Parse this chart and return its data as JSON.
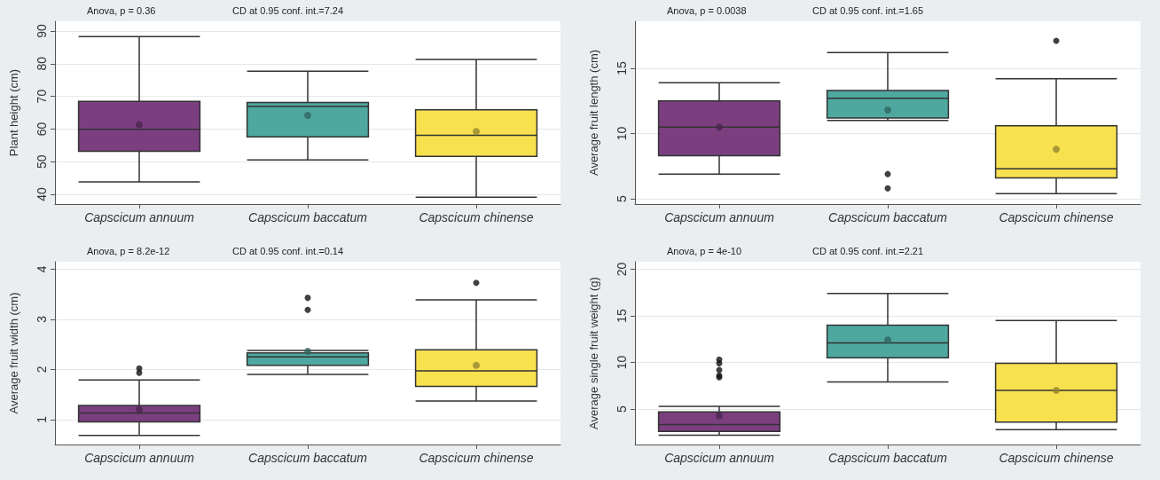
{
  "chart_data": [
    {
      "type": "box",
      "ylabel": "Plant height (cm)",
      "categories": [
        "Capscicum annuum",
        "Capscicum baccatum",
        "Capscicum chinense"
      ],
      "colors": [
        "#7b3f80",
        "#4fa8a0",
        "#f7e14f"
      ],
      "ylim": [
        37,
        93
      ],
      "yticks": [
        40,
        50,
        60,
        70,
        80,
        90
      ],
      "grid": "y",
      "annotations": [
        "Anova, p = 0.36",
        "CD at 0.95 conf. int.=7.24"
      ],
      "boxes": [
        {
          "low": 43.8,
          "q1": 53.2,
          "median": 59.9,
          "q3": 68.5,
          "high": 88.3,
          "mean": 61.3
        },
        {
          "low": 50.5,
          "q1": 57.6,
          "median": 66.9,
          "q3": 68.1,
          "high": 77.7,
          "mean": 64.2
        },
        {
          "low": 39.1,
          "q1": 51.6,
          "median": 58.1,
          "q3": 65.9,
          "high": 81.3,
          "mean": 59.2
        }
      ]
    },
    {
      "type": "box",
      "ylabel": "Average fruit length (cm)",
      "categories": [
        "Capscicum annuum",
        "Capscicum baccatum",
        "Capscicum chinense"
      ],
      "colors": [
        "#7b3f80",
        "#4fa8a0",
        "#f7e14f"
      ],
      "ylim": [
        4.6,
        18.6
      ],
      "yticks": [
        5,
        10,
        15
      ],
      "grid": "y",
      "annotations": [
        "Anova, p = 0.0038",
        "CD at 0.95 conf. int.=1.65"
      ],
      "boxes": [
        {
          "low": 6.9,
          "q1": 8.3,
          "median": 10.5,
          "q3": 12.5,
          "high": 13.9,
          "mean": 10.5
        },
        {
          "low": 11.0,
          "q1": 11.2,
          "median": 12.7,
          "q3": 13.3,
          "high": 16.2,
          "mean": 11.8,
          "outliers": [
            6.9,
            5.8
          ]
        },
        {
          "low": 5.4,
          "q1": 6.6,
          "median": 7.3,
          "q3": 10.6,
          "high": 14.2,
          "mean": 8.8,
          "outliers": [
            17.1
          ]
        }
      ]
    },
    {
      "type": "box",
      "ylabel": "Average fruit width (cm)",
      "categories": [
        "Capscicum annuum",
        "Capscicum baccatum",
        "Capscicum chinense"
      ],
      "colors": [
        "#7b3f80",
        "#4fa8a0",
        "#f7e14f"
      ],
      "ylim": [
        0.5,
        4.15
      ],
      "yticks": [
        1,
        2,
        3,
        4
      ],
      "grid": "y",
      "annotations": [
        "Anova, p = 8.2e-12",
        "CD at 0.95 conf. int.=0.14"
      ],
      "boxes": [
        {
          "low": 0.68,
          "q1": 0.95,
          "median": 1.13,
          "q3": 1.28,
          "high": 1.79,
          "mean": 1.2,
          "outliers": [
            2.02,
            1.93
          ]
        },
        {
          "low": 1.9,
          "q1": 2.08,
          "median": 2.25,
          "q3": 2.33,
          "high": 2.38,
          "mean": 2.36,
          "outliers": [
            3.43,
            3.19
          ]
        },
        {
          "low": 1.37,
          "q1": 1.66,
          "median": 1.97,
          "q3": 2.39,
          "high": 3.39,
          "mean": 2.08,
          "outliers": [
            3.73
          ]
        }
      ]
    },
    {
      "type": "box",
      "ylabel": "Average single fruit weight (g)",
      "categories": [
        "Capscicum annuum",
        "Capscicum baccatum",
        "Capscicum chinense"
      ],
      "colors": [
        "#7b3f80",
        "#4fa8a0",
        "#f7e14f"
      ],
      "ylim": [
        1.2,
        20.8
      ],
      "yticks": [
        5,
        10,
        15,
        20
      ],
      "grid": "y",
      "annotations": [
        "Anova, p = 4e-10",
        "CD at 0.95 conf. int.=2.21"
      ],
      "boxes": [
        {
          "low": 2.2,
          "q1": 2.6,
          "median": 3.35,
          "q3": 4.7,
          "high": 5.3,
          "mean": 4.3,
          "outliers": [
            10.3,
            9.9,
            9.2,
            8.6,
            8.4
          ]
        },
        {
          "low": 7.9,
          "q1": 10.5,
          "median": 12.1,
          "q3": 14.0,
          "high": 17.4,
          "mean": 12.4
        },
        {
          "low": 2.8,
          "q1": 3.6,
          "median": 7.0,
          "q3": 9.9,
          "high": 14.5,
          "mean": 7.0
        }
      ]
    }
  ]
}
